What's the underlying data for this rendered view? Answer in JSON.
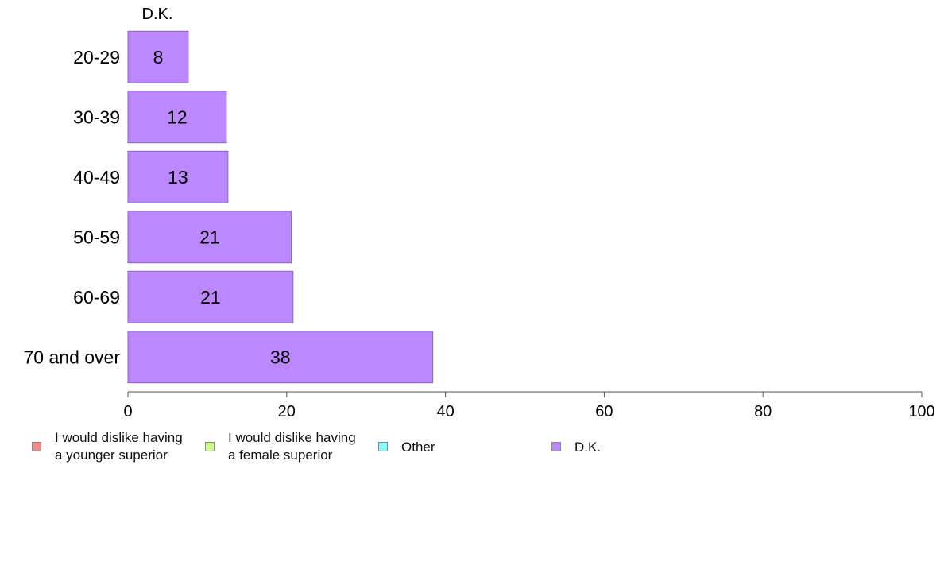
{
  "chart_data": {
    "type": "bar",
    "orientation": "horizontal",
    "series_label": "D.K.",
    "categories": [
      "20-29",
      "30-39",
      "40-49",
      "50-59",
      "60-69",
      "70 and over"
    ],
    "values": [
      7.6,
      12.4,
      12.6,
      20.6,
      20.8,
      38.4
    ],
    "data_labels": [
      "8",
      "12",
      "13",
      "21",
      "21",
      "38"
    ],
    "bar_color": "#bb88ff",
    "bar_stroke": "#8866bb",
    "xlim": [
      0,
      100
    ],
    "x_ticks": [
      0,
      20,
      40,
      60,
      80,
      100
    ],
    "x_tick_labels": [
      "0",
      "20",
      "40",
      "60",
      "80",
      "100"
    ],
    "grid": false,
    "legend_placement": "bottom",
    "legend": [
      {
        "label": "I would dislike having\na younger superior",
        "color": "#ff8888"
      },
      {
        "label": "I would dislike having\na female superior",
        "color": "#ccff88"
      },
      {
        "label": "Other",
        "color": "#88ffff"
      },
      {
        "label": "D.K.",
        "color": "#bb88ff"
      }
    ]
  }
}
